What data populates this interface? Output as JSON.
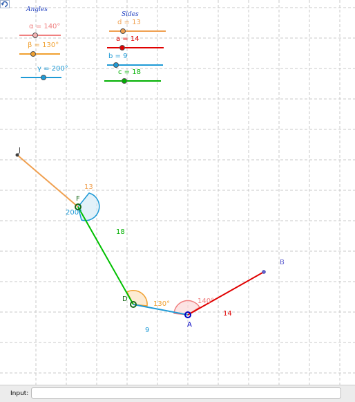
{
  "panel_titles": {
    "angles": "Angles",
    "sides": "Sides"
  },
  "sliders": {
    "alpha": {
      "label": "α = 140°",
      "value": 140,
      "color": "#f08080"
    },
    "beta": {
      "label": "β = 130°",
      "value": 130,
      "color": "#f0a030"
    },
    "gamma": {
      "label": "γ = 200°",
      "value": 200,
      "color": "#1e9ad6"
    },
    "d": {
      "label": "d = 13",
      "value": 13,
      "color": "#f0a050"
    },
    "a": {
      "label": "a = 14",
      "value": 14,
      "color": "#e00000"
    },
    "b": {
      "label": "b = 9",
      "value": 9,
      "color": "#1e9ad6"
    },
    "c": {
      "label": "c = 18",
      "value": 18,
      "color": "#00b000"
    }
  },
  "points": {
    "J": "J",
    "F": "F",
    "D": "D",
    "A": "A",
    "B": "B"
  },
  "segment_labels": {
    "d": "13",
    "c": "18",
    "b": "9",
    "a": "14"
  },
  "angle_labels": {
    "gamma": "200°",
    "beta": "130°",
    "alpha": "140°"
  },
  "input_bar": {
    "label": "Input:",
    "value": ""
  },
  "toolbar": {
    "refresh_icon": "refresh-icon"
  }
}
